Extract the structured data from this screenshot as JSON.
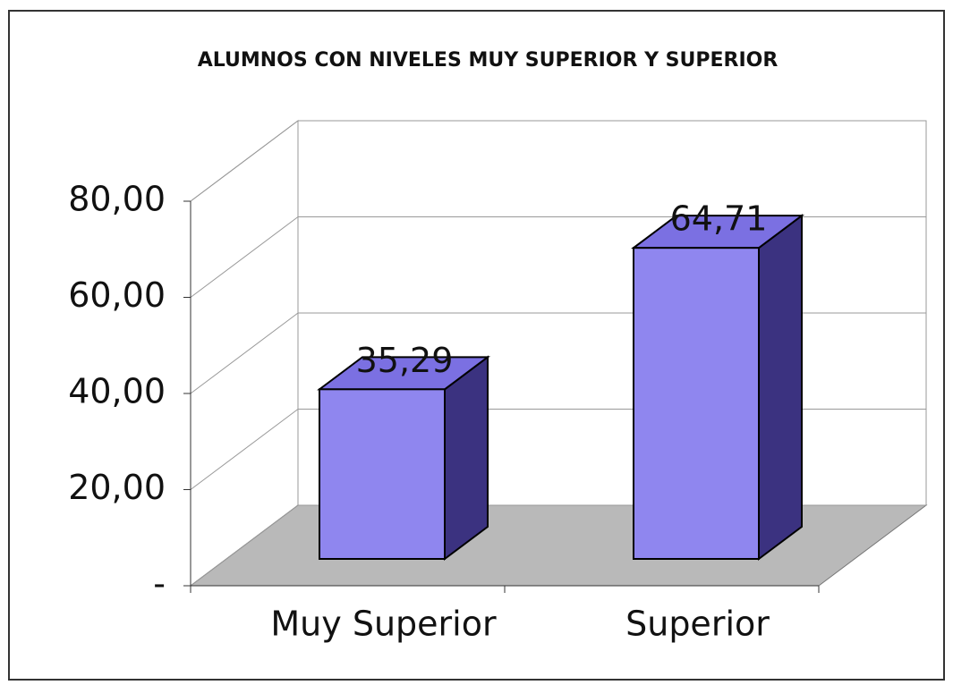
{
  "chart_data": {
    "type": "bar3d",
    "title": "ALUMNOS CON NIVELES MUY SUPERIOR Y SUPERIOR",
    "categories": [
      "Muy Superior",
      "Superior"
    ],
    "values": [
      35.29,
      64.71
    ],
    "value_labels": [
      "35,29",
      "64,71"
    ],
    "color": "#8f86ef",
    "ylim": [
      0,
      80
    ],
    "yticks": [
      {
        "value": 0,
        "label": "-"
      },
      {
        "value": 20,
        "label": "20,00"
      },
      {
        "value": 40,
        "label": "40,00"
      },
      {
        "value": 60,
        "label": "60,00"
      },
      {
        "value": 80,
        "label": "80,00"
      }
    ],
    "grid": true
  }
}
